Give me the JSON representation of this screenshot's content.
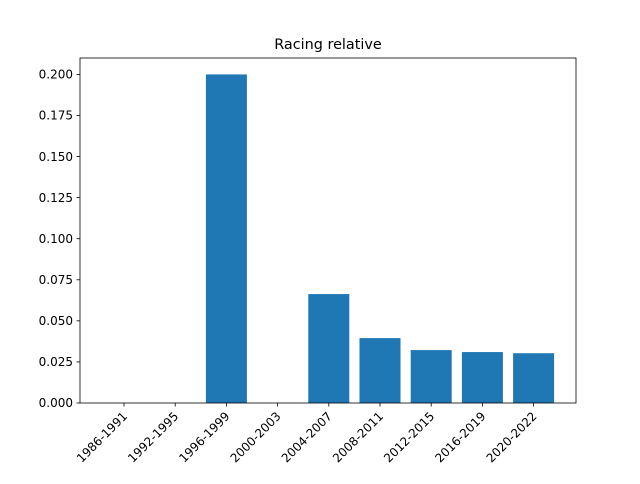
{
  "chart_data": {
    "type": "bar",
    "title": "Racing relative",
    "xlabel": "",
    "ylabel": "",
    "categories": [
      "1986-1991",
      "1992-1995",
      "1996-1999",
      "2000-2003",
      "2004-2007",
      "2008-2011",
      "2012-2015",
      "2016-2019",
      "2020-2022"
    ],
    "values": [
      0,
      0,
      0.2,
      0,
      0.0663,
      0.0395,
      0.0322,
      0.031,
      0.0303
    ],
    "ylim": [
      0,
      0.21
    ],
    "yticks": [
      "0.000",
      "0.025",
      "0.050",
      "0.075",
      "0.100",
      "0.125",
      "0.150",
      "0.175",
      "0.200"
    ],
    "bar_color": "#1f77b4",
    "grid": false,
    "legend": false
  }
}
